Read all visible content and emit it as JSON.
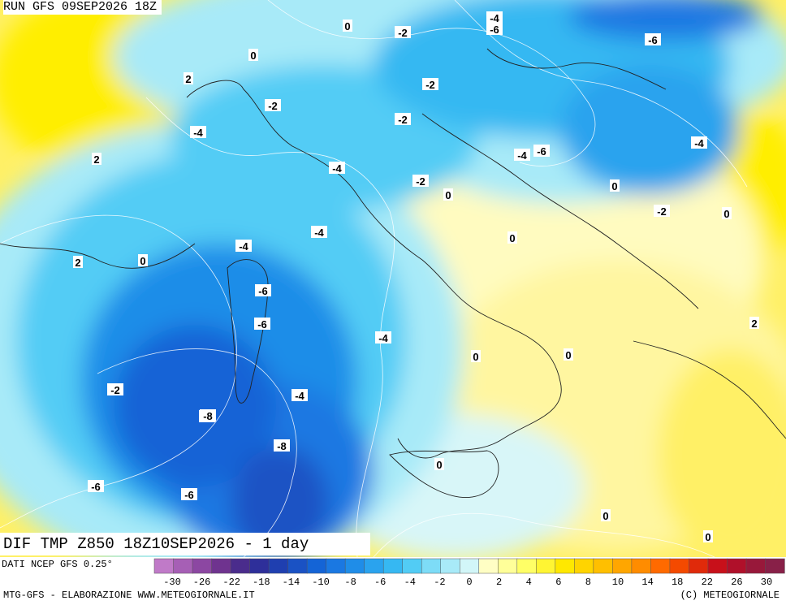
{
  "header": {
    "run_title": "RUN GFS 09SEP2026 18Z"
  },
  "map": {
    "title": "DIF TMP Z850 18Z10SEP2026 - 1 day",
    "source_note": "DATI NCEP GFS 0.25°"
  },
  "contour_labels": [
    "-4",
    "-6",
    "-2",
    "0",
    "-6",
    "0",
    "2",
    "-2",
    "-2",
    "-2",
    "-4",
    "-4",
    "-6",
    "-4",
    "2",
    "-4",
    "-2",
    "0",
    "0",
    "-2",
    "0",
    "-4",
    "-4",
    "2",
    "0",
    "-4",
    "-6",
    "0",
    "-6",
    "-4",
    "2",
    "0",
    "0",
    "-2",
    "-6",
    "-8",
    "-8",
    "-6",
    "-6",
    "0",
    "0",
    "0"
  ],
  "legend": {
    "colors": [
      "#c07ac8",
      "#a65fb5",
      "#8c47a2",
      "#6f338f",
      "#4a2c8c",
      "#2e2f9a",
      "#1f3fb0",
      "#1a52c4",
      "#1464d6",
      "#1a78e2",
      "#1f8de8",
      "#2aa3ee",
      "#36b8f2",
      "#52ccf5",
      "#7ddcf7",
      "#a8eaf8",
      "#d2f6f8",
      "#fffec4",
      "#ffff99",
      "#ffff66",
      "#fff533",
      "#ffe800",
      "#ffd400",
      "#ffbf00",
      "#ffa600",
      "#ff8c00",
      "#ff6a00",
      "#f44a00",
      "#e02a0a",
      "#c8101a",
      "#b0102a",
      "#98183a",
      "#882048"
    ],
    "tick_labels": [
      "-30",
      "-26",
      "-22",
      "-18",
      "-14",
      "-10",
      "-8",
      "-6",
      "-4",
      "-2",
      "0",
      "2",
      "4",
      "6",
      "8",
      "10",
      "14",
      "18",
      "22",
      "26",
      "30"
    ]
  },
  "footer": {
    "left_text": "MTG-GFS - ELABORAZIONE WWW.METEOGIORNALE.IT",
    "right_text": "(C) METEOGIORNALE"
  }
}
